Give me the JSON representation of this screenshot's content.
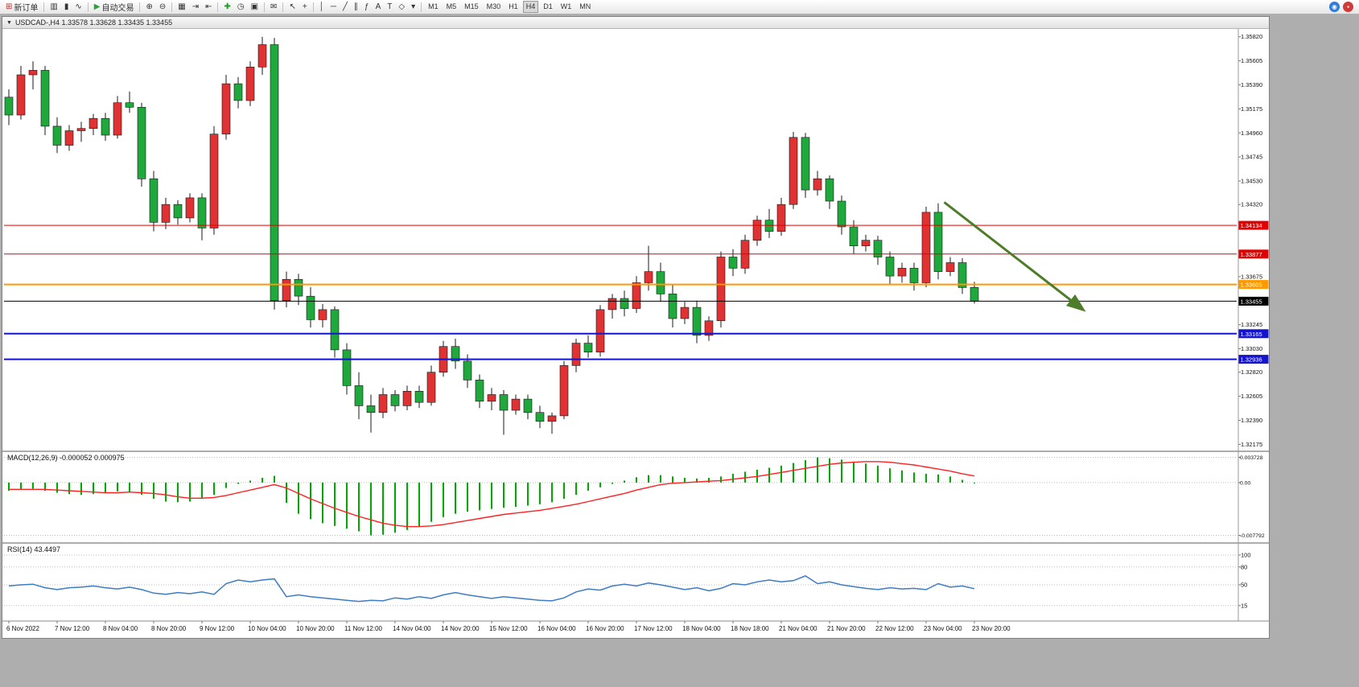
{
  "window": {
    "title": "USDCAD-,H4 1.33578 1.33628 1.33435 1.33455",
    "caret_glyph": "▼"
  },
  "toolbar": {
    "items": [
      {
        "name": "new-order-button",
        "glyph": "⊞",
        "glyph_color": "#b03030",
        "label": "新订单"
      },
      {
        "sep": true
      },
      {
        "name": "chart-bars-icon",
        "glyph": "▥"
      },
      {
        "name": "chart-candles-icon",
        "glyph": "▮"
      },
      {
        "name": "chart-line-icon",
        "glyph": "∿"
      },
      {
        "sep": true
      },
      {
        "name": "autotrade-button",
        "glyph": "▶",
        "glyph_color": "#2f9e3e",
        "label": "自动交易"
      },
      {
        "sep": true
      },
      {
        "name": "zoom-in-icon",
        "glyph": "⊕"
      },
      {
        "name": "zoom-out-icon",
        "glyph": "⊖"
      },
      {
        "sep": true
      },
      {
        "name": "tile-windows-icon",
        "glyph": "▦"
      },
      {
        "name": "auto-scroll-icon",
        "glyph": "⇥"
      },
      {
        "name": "chart-shift-icon",
        "glyph": "⇤"
      },
      {
        "sep": true
      },
      {
        "name": "indicators-add-button",
        "glyph": "✚",
        "glyph_color": "#1e9e1e"
      },
      {
        "name": "periods-dropdown-icon",
        "glyph": "◷"
      },
      {
        "name": "templates-icon",
        "glyph": "▣"
      },
      {
        "sep": true
      },
      {
        "name": "alerts-icon",
        "glyph": "✉"
      },
      {
        "sep": true
      },
      {
        "name": "cursor-icon",
        "glyph": "↖"
      },
      {
        "name": "crosshair-icon",
        "glyph": "+"
      },
      {
        "sep": true
      },
      {
        "name": "vertical-line-icon",
        "glyph": "│"
      },
      {
        "name": "horizontal-line-icon",
        "glyph": "─"
      },
      {
        "name": "trendline-icon",
        "glyph": "╱"
      },
      {
        "name": "channel-icon",
        "glyph": "∥"
      },
      {
        "name": "fibonacci-icon",
        "glyph": "ƒ"
      },
      {
        "name": "text-icon",
        "glyph": "A"
      },
      {
        "name": "label-icon",
        "glyph": "T"
      },
      {
        "name": "shapes-icon",
        "glyph": "◇"
      },
      {
        "name": "arrows-dropdown-icon",
        "glyph": "▾"
      },
      {
        "sep": true
      }
    ],
    "timeframes": [
      "M1",
      "M5",
      "M15",
      "M30",
      "H1",
      "H4",
      "D1",
      "W1",
      "MN"
    ],
    "active_timeframe": "H4",
    "right_icons": [
      {
        "name": "news-icon",
        "glyph": "◉",
        "bg": "#2f7bd6"
      },
      {
        "name": "promo-icon",
        "glyph": "▪",
        "bg": "#d03a3a"
      }
    ]
  },
  "chart_data": {
    "type": "candlestick",
    "symbol": "USDCAD-",
    "timeframe": "H4",
    "current_bar": {
      "open": "1.33578",
      "high": "1.33628",
      "low": "1.33435",
      "close": "1.33455"
    },
    "colors": {
      "background": "#FFFFFF",
      "bull": "#E03232",
      "bear": "#1FA83C",
      "wick": "#1A1A1A",
      "macd_hist": "#00A800",
      "macd_signal": "#FF2020",
      "rsi_line": "#3B7CC4",
      "arrow": "#4E7D2A",
      "axis_text": "#111111"
    },
    "price_axis_labels": [
      "1.35820",
      "1.35605",
      "1.35390",
      "1.35175",
      "1.34960",
      "1.34745",
      "1.34530",
      "1.34320",
      "1.33675",
      "1.33245",
      "1.33030",
      "1.32820",
      "1.32605",
      "1.32390",
      "1.32175"
    ],
    "time_labels": [
      "6 Nov 2022",
      "7 Nov 12:00",
      "8 Nov 04:00",
      "8 Nov 20:00",
      "9 Nov 12:00",
      "10 Nov 04:00",
      "10 Nov 20:00",
      "11 Nov 12:00",
      "14 Nov 04:00",
      "14 Nov 20:00",
      "15 Nov 12:00",
      "16 Nov 04:00",
      "16 Nov 20:00",
      "17 Nov 12:00",
      "18 Nov 04:00",
      "18 Nov 18:00",
      "21 Nov 04:00",
      "21 Nov 20:00",
      "22 Nov 12:00",
      "23 Nov 04:00",
      "23 Nov 20:00"
    ],
    "candles": [
      [
        1.3528,
        1.3535,
        1.3503,
        1.3512
      ],
      [
        1.3512,
        1.3556,
        1.3508,
        1.3548
      ],
      [
        1.3548,
        1.356,
        1.3535,
        1.3552
      ],
      [
        1.3552,
        1.3556,
        1.3494,
        1.3502
      ],
      [
        1.3502,
        1.351,
        1.3478,
        1.3485
      ],
      [
        1.3485,
        1.3503,
        1.348,
        1.3498
      ],
      [
        1.3498,
        1.3506,
        1.3488,
        1.35
      ],
      [
        1.35,
        1.3513,
        1.3494,
        1.3509
      ],
      [
        1.3509,
        1.3514,
        1.3489,
        1.3494
      ],
      [
        1.3494,
        1.3529,
        1.3491,
        1.3523
      ],
      [
        1.3523,
        1.3533,
        1.3514,
        1.3519
      ],
      [
        1.3519,
        1.3523,
        1.3448,
        1.3455
      ],
      [
        1.3455,
        1.3462,
        1.3408,
        1.3416
      ],
      [
        1.3416,
        1.3438,
        1.341,
        1.3432
      ],
      [
        1.3432,
        1.3436,
        1.3414,
        1.342
      ],
      [
        1.342,
        1.3442,
        1.3416,
        1.3438
      ],
      [
        1.3438,
        1.3442,
        1.34,
        1.3411
      ],
      [
        1.3411,
        1.3502,
        1.3405,
        1.3495
      ],
      [
        1.3495,
        1.3548,
        1.349,
        1.354
      ],
      [
        1.354,
        1.3546,
        1.3518,
        1.3525
      ],
      [
        1.3525,
        1.356,
        1.352,
        1.3555
      ],
      [
        1.3555,
        1.3582,
        1.3548,
        1.3575
      ],
      [
        1.3575,
        1.3581,
        1.3338,
        1.3346
      ],
      [
        1.3346,
        1.3372,
        1.334,
        1.3365
      ],
      [
        1.3365,
        1.337,
        1.3342,
        1.335
      ],
      [
        1.335,
        1.3358,
        1.3322,
        1.3329
      ],
      [
        1.3329,
        1.3343,
        1.3322,
        1.3338
      ],
      [
        1.3338,
        1.3341,
        1.3295,
        1.3302
      ],
      [
        1.3302,
        1.3308,
        1.3262,
        1.327
      ],
      [
        1.327,
        1.3282,
        1.324,
        1.3252
      ],
      [
        1.3252,
        1.3262,
        1.3228,
        1.3246
      ],
      [
        1.3246,
        1.3268,
        1.3241,
        1.3262
      ],
      [
        1.3262,
        1.3266,
        1.3247,
        1.3252
      ],
      [
        1.3252,
        1.327,
        1.3248,
        1.3265
      ],
      [
        1.3265,
        1.327,
        1.325,
        1.3255
      ],
      [
        1.3255,
        1.3288,
        1.3252,
        1.3282
      ],
      [
        1.3282,
        1.331,
        1.3278,
        1.3305
      ],
      [
        1.3305,
        1.3312,
        1.3285,
        1.3292
      ],
      [
        1.3292,
        1.3298,
        1.3268,
        1.3275
      ],
      [
        1.3275,
        1.328,
        1.325,
        1.3256
      ],
      [
        1.3256,
        1.3268,
        1.3248,
        1.3262
      ],
      [
        1.3262,
        1.3266,
        1.3226,
        1.3248
      ],
      [
        1.3248,
        1.3262,
        1.3244,
        1.3258
      ],
      [
        1.3258,
        1.3262,
        1.324,
        1.3246
      ],
      [
        1.3246,
        1.3252,
        1.3232,
        1.3238
      ],
      [
        1.3238,
        1.3246,
        1.3227,
        1.3243
      ],
      [
        1.3243,
        1.3292,
        1.324,
        1.3288
      ],
      [
        1.3288,
        1.3312,
        1.3282,
        1.3308
      ],
      [
        1.3308,
        1.3315,
        1.3295,
        1.33
      ],
      [
        1.33,
        1.3342,
        1.3296,
        1.3338
      ],
      [
        1.3338,
        1.3352,
        1.333,
        1.3348
      ],
      [
        1.3348,
        1.3355,
        1.3332,
        1.3339
      ],
      [
        1.3339,
        1.3368,
        1.3335,
        1.3362
      ],
      [
        1.3362,
        1.3395,
        1.3355,
        1.3372
      ],
      [
        1.3372,
        1.338,
        1.3345,
        1.3352
      ],
      [
        1.3352,
        1.336,
        1.3322,
        1.333
      ],
      [
        1.333,
        1.3345,
        1.3325,
        1.334
      ],
      [
        1.334,
        1.3346,
        1.3308,
        1.3315
      ],
      [
        1.3315,
        1.3332,
        1.331,
        1.3328
      ],
      [
        1.3328,
        1.339,
        1.3322,
        1.3385
      ],
      [
        1.3385,
        1.3392,
        1.3368,
        1.3375
      ],
      [
        1.3375,
        1.3405,
        1.337,
        1.34
      ],
      [
        1.34,
        1.3422,
        1.3395,
        1.3418
      ],
      [
        1.3418,
        1.3428,
        1.3402,
        1.3408
      ],
      [
        1.3408,
        1.3438,
        1.3404,
        1.3432
      ],
      [
        1.3432,
        1.3497,
        1.3428,
        1.3492
      ],
      [
        1.3492,
        1.3496,
        1.3438,
        1.3445
      ],
      [
        1.3445,
        1.3462,
        1.344,
        1.3455
      ],
      [
        1.3455,
        1.3458,
        1.3428,
        1.3435
      ],
      [
        1.3435,
        1.344,
        1.3405,
        1.3412
      ],
      [
        1.3412,
        1.3418,
        1.3388,
        1.3395
      ],
      [
        1.3395,
        1.3405,
        1.339,
        1.34
      ],
      [
        1.34,
        1.3404,
        1.3378,
        1.3385
      ],
      [
        1.3385,
        1.339,
        1.336,
        1.3368
      ],
      [
        1.3368,
        1.338,
        1.3362,
        1.3375
      ],
      [
        1.3375,
        1.338,
        1.3355,
        1.3362
      ],
      [
        1.3362,
        1.343,
        1.3358,
        1.3425
      ],
      [
        1.3425,
        1.3433,
        1.3365,
        1.3372
      ],
      [
        1.3372,
        1.3385,
        1.3368,
        1.338
      ],
      [
        1.338,
        1.3384,
        1.3352,
        1.33578
      ],
      [
        1.33578,
        1.33628,
        1.33435,
        1.33455
      ]
    ],
    "hlines": [
      {
        "value": 1.34134,
        "color": "#E00000",
        "width": 1,
        "tag": "1.34134"
      },
      {
        "value": 1.33877,
        "color": "#E00000",
        "width": 1,
        "tag": "1.33877"
      },
      {
        "value": 1.33605,
        "color": "#FF9900",
        "width": 2,
        "tag": "1.33605"
      },
      {
        "value": 1.33455,
        "color": "#000000",
        "width": 1,
        "tag": "1.33455"
      },
      {
        "value": 1.33165,
        "color": "#1414CC",
        "width": 2,
        "tag": "1.33165"
      },
      {
        "value": 1.32936,
        "color": "#1414CC",
        "width": 2,
        "tag": "1.32936"
      }
    ],
    "trend_arrow": {
      "from_index": 77.5,
      "from_price": 1.3434,
      "to_index": 89,
      "to_price": 1.3338,
      "width": 3
    },
    "macd": {
      "display": "MACD(12,26,9) -0.000052 0.000975",
      "name": "MACD(12,26,9)",
      "value_main": "-0.000052",
      "value_signal": "0.000975",
      "axis_labels": [
        {
          "text": "0.003728",
          "value": 0.003728
        },
        {
          "text": "0.00",
          "value": 0
        },
        {
          "text": "-0.007792",
          "value": -0.007792
        }
      ],
      "main": [
        -0.0012,
        -0.001,
        -0.0009,
        -0.0012,
        -0.0015,
        -0.0017,
        -0.0018,
        -0.0017,
        -0.0015,
        -0.0013,
        -0.0014,
        -0.0018,
        -0.0024,
        -0.0028,
        -0.0029,
        -0.0028,
        -0.0024,
        -0.0018,
        -0.0008,
        -0.0002,
        0.0003,
        0.0007,
        0.001,
        -0.003,
        -0.0046,
        -0.0054,
        -0.006,
        -0.0064,
        -0.0068,
        -0.0072,
        -0.007792,
        -0.0077,
        -0.0074,
        -0.007,
        -0.0065,
        -0.0058,
        -0.0051,
        -0.0046,
        -0.0043,
        -0.0041,
        -0.0039,
        -0.0037,
        -0.0036,
        -0.0034,
        -0.0032,
        -0.0029,
        -0.0024,
        -0.0018,
        -0.0012,
        -0.0007,
        -0.0002,
        0.0003,
        0.0008,
        0.0011,
        0.0011,
        0.0009,
        0.0007,
        0.0006,
        0.0007,
        0.0009,
        0.0013,
        0.0016,
        0.0019,
        0.0022,
        0.0025,
        0.0029,
        0.0033,
        0.003728,
        0.0036,
        0.0034,
        0.0031,
        0.0028,
        0.0025,
        0.0021,
        0.0018,
        0.0015,
        0.0013,
        0.0012,
        0.0009,
        0.0004,
        -5.2e-05
      ],
      "signal": [
        -0.001,
        -0.001,
        -0.001,
        -0.001,
        -0.0011,
        -0.0012,
        -0.0013,
        -0.0014,
        -0.0015,
        -0.0015,
        -0.0014,
        -0.0015,
        -0.0016,
        -0.0018,
        -0.0021,
        -0.0023,
        -0.0023,
        -0.0022,
        -0.0019,
        -0.0015,
        -0.0011,
        -0.0007,
        -0.0003,
        -0.0008,
        -0.0016,
        -0.0024,
        -0.0031,
        -0.0038,
        -0.0044,
        -0.005,
        -0.0055,
        -0.006,
        -0.0063,
        -0.0065,
        -0.0065,
        -0.0064,
        -0.0062,
        -0.0059,
        -0.0056,
        -0.0053,
        -0.005,
        -0.0047,
        -0.0045,
        -0.0043,
        -0.0041,
        -0.0038,
        -0.0035,
        -0.0032,
        -0.0028,
        -0.0024,
        -0.002,
        -0.0016,
        -0.0011,
        -0.0007,
        -0.0003,
        -0.0001,
        0.0,
        0.0001,
        0.0002,
        0.0003,
        0.0005,
        0.0007,
        0.0009,
        0.0012,
        0.0015,
        0.0018,
        0.0021,
        0.0024,
        0.0027,
        0.0029,
        0.003,
        0.0031,
        0.0031,
        0.003,
        0.0028,
        0.0026,
        0.0023,
        0.002,
        0.0017,
        0.0013,
        0.000975
      ]
    },
    "rsi": {
      "display": "RSI(14) 43.4497",
      "name": "RSI(14)",
      "value": "43.4497",
      "axis_labels": [
        {
          "text": "100",
          "value": 100
        },
        {
          "text": "80",
          "value": 80
        },
        {
          "text": "50",
          "value": 50
        },
        {
          "text": "15",
          "value": 15
        }
      ],
      "series": [
        48,
        50,
        51,
        45,
        42,
        45,
        46,
        48,
        45,
        43,
        46,
        42,
        36,
        34,
        37,
        35,
        38,
        34,
        52,
        58,
        55,
        58,
        60,
        30,
        33,
        30,
        28,
        26,
        24,
        22,
        24,
        23,
        28,
        26,
        30,
        27,
        33,
        37,
        33,
        30,
        27,
        30,
        28,
        26,
        24,
        23,
        28,
        38,
        43,
        41,
        48,
        51,
        48,
        53,
        50,
        46,
        42,
        45,
        40,
        44,
        52,
        50,
        55,
        58,
        55,
        57,
        65,
        52,
        55,
        50,
        47,
        44,
        42,
        45,
        43,
        44,
        42,
        52,
        46,
        48,
        43.4497
      ]
    }
  }
}
